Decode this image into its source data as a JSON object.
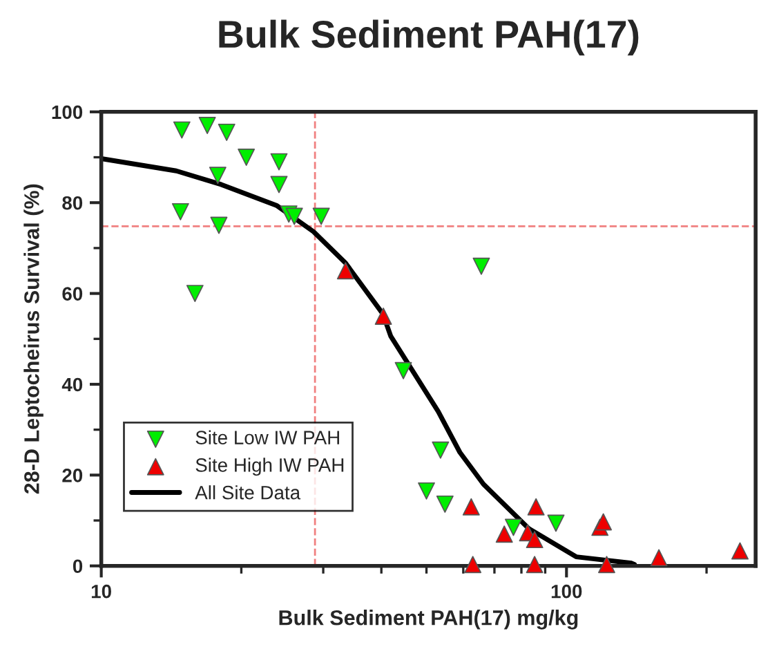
{
  "chart_data": {
    "type": "scatter",
    "title": "Bulk Sediment PAH(17)",
    "xlabel": "Bulk Sediment PAH(17) mg/kg",
    "ylabel": "28-D Leptocheirus Survival (%)",
    "log": "x",
    "xlim": [
      10,
      255
    ],
    "xticks": [
      10,
      100
    ],
    "ylim": [
      0,
      100
    ],
    "yticks": [
      0,
      20,
      40,
      60,
      80,
      100
    ],
    "grid": false,
    "legend": "bottom left",
    "series": [
      {
        "name": "Site Low IW PAH",
        "marker": "triangle_down",
        "color": "#00ee00",
        "x": [
          14.9,
          16.9,
          18.6,
          20.5,
          24.1,
          24.1,
          17.9,
          14.8,
          15.9,
          17.8,
          25.3,
          26,
          29.7,
          65.6,
          44.6,
          53.6,
          50,
          54.8,
          76.9,
          94.9
        ],
        "values": [
          96,
          97,
          95.5,
          90,
          89,
          84,
          75,
          78,
          60,
          86,
          77.5,
          77,
          77,
          66,
          43,
          25.5,
          16.5,
          13.6,
          8.5,
          9.4
        ]
      },
      {
        "name": "Site High IW PAH",
        "marker": "triangle",
        "color": "#ee0000",
        "x": [
          33.5,
          40.4,
          62.4,
          86,
          73.5,
          82.5,
          85.4,
          118,
          120,
          62.9,
          85.4,
          122,
          158,
          236
        ],
        "values": [
          65,
          55,
          13,
          13,
          7,
          7.3,
          5.8,
          8.5,
          9.7,
          0.3,
          0.3,
          0.3,
          1.8,
          3.3
        ]
      },
      {
        "name": "All Site Data",
        "type": "line",
        "marker": "none",
        "line_style": "solid",
        "color": "#000000",
        "x": [
          10,
          14.5,
          18.1,
          23.8,
          28.6,
          33.5,
          40.3,
          41.9,
          53,
          59,
          66.3,
          83,
          104.9,
          138,
          140
        ],
        "values": [
          89.7,
          87,
          84,
          79.4,
          73.6,
          66.7,
          55.5,
          50.6,
          34,
          25,
          18,
          8.2,
          2,
          0.6,
          0.3
        ]
      }
    ],
    "ref_lines": [
      {
        "axis": "x",
        "value": 28.8,
        "color": "#f08080",
        "line_style": "dashed"
      },
      {
        "axis": "y",
        "value": 74.8,
        "color": "#f08080",
        "line_style": "dashed"
      }
    ]
  }
}
